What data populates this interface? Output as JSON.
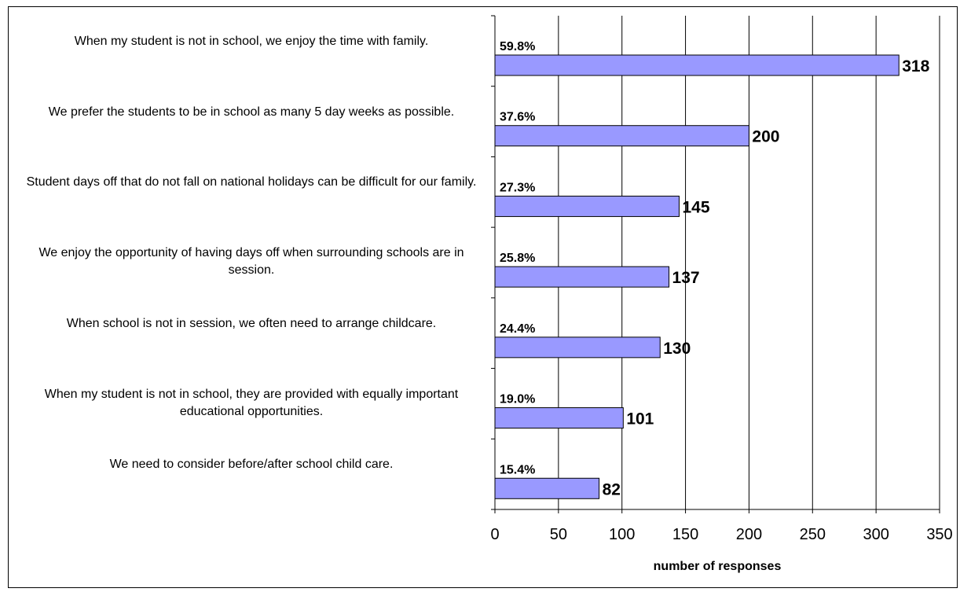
{
  "chart_data": {
    "type": "bar",
    "orientation": "horizontal",
    "categories": [
      "When my student is not in school, we enjoy the time with family.",
      "We prefer the students to be in school as many 5 day weeks as possible.",
      "Student days off that do not fall on national holidays can be difficult for our family.",
      "We enjoy the opportunity of having days off when surrounding schools are in session.",
      "When school is not in session, we often need to arrange childcare.",
      "When my student is not in school, they are provided with equally important educational opportunities.",
      "We need to consider before/after school child care."
    ],
    "values": [
      318,
      200,
      145,
      137,
      130,
      101,
      82
    ],
    "percent_labels": [
      "59.8%",
      "37.6%",
      "27.3%",
      "25.8%",
      "24.4%",
      "19.0%",
      "15.4%"
    ],
    "value_labels": [
      "318",
      "200",
      "145",
      "137",
      "130",
      "101",
      "82"
    ],
    "xlabel": "number of responses",
    "xlim": [
      0,
      350
    ],
    "xticks": [
      0,
      50,
      100,
      150,
      200,
      250,
      300,
      350
    ],
    "xtick_labels": [
      "0",
      "50",
      "100",
      "150",
      "200",
      "250",
      "300",
      "350"
    ],
    "grid": "vertical lines",
    "bar_color": "#9999ff",
    "bar_edge_color": "#000000"
  }
}
